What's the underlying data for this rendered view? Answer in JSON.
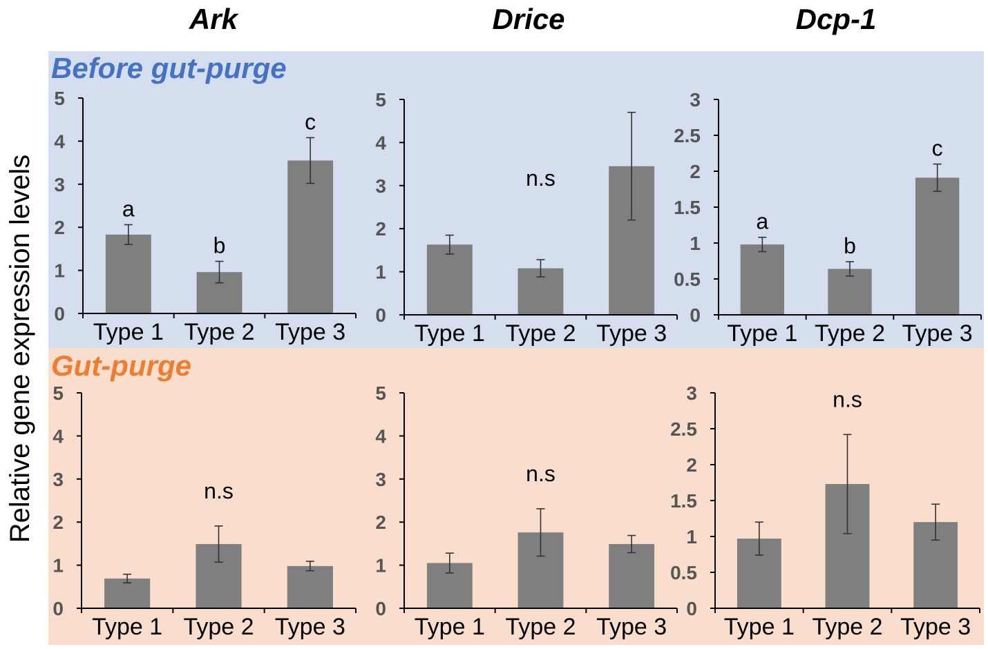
{
  "figure": {
    "y_axis_label": "Relative gene expression levels",
    "gene_titles": [
      "Ark",
      "Drice",
      "Dcp-1"
    ],
    "conditions": [
      {
        "label": "Before gut-purge",
        "label_color": "#4472c4",
        "background": "#d5deef"
      },
      {
        "label": "Gut-purge",
        "label_color": "#ed7d31",
        "background": "#f9ddcd"
      }
    ],
    "bar_color": "#7f7f7f"
  },
  "chart_data": [
    {
      "type": "bar",
      "title": "Ark",
      "condition": "Before gut-purge",
      "categories": [
        "Type 1",
        "Type 2",
        "Type 3"
      ],
      "values": [
        1.83,
        0.96,
        3.55
      ],
      "error": [
        0.23,
        0.25,
        0.53
      ],
      "labels": [
        "a",
        "b",
        "c"
      ],
      "annotation": "",
      "ylim": [
        0,
        5
      ],
      "yticks": [
        0,
        1,
        2,
        3,
        4,
        5
      ],
      "ytick_labels": [
        "0",
        "1",
        "2",
        "3",
        "4",
        "5"
      ]
    },
    {
      "type": "bar",
      "title": "Drice",
      "condition": "Before gut-purge",
      "categories": [
        "Type 1",
        "Type 2",
        "Type 3"
      ],
      "values": [
        1.63,
        1.08,
        3.45
      ],
      "error": [
        0.22,
        0.2,
        1.25
      ],
      "labels": [
        "",
        "",
        ""
      ],
      "annotation": "n.s",
      "ylim": [
        0,
        5
      ],
      "yticks": [
        0,
        1,
        2,
        3,
        4,
        5
      ],
      "ytick_labels": [
        "0",
        "1",
        "2",
        "3",
        "4",
        "5"
      ]
    },
    {
      "type": "bar",
      "title": "Dcp-1",
      "condition": "Before gut-purge",
      "categories": [
        "Type 1",
        "Type 2",
        "Type 3"
      ],
      "values": [
        0.98,
        0.64,
        1.91
      ],
      "error": [
        0.1,
        0.1,
        0.19
      ],
      "labels": [
        "a",
        "b",
        "c"
      ],
      "annotation": "",
      "ylim": [
        0,
        3
      ],
      "yticks": [
        0,
        0.5,
        1,
        1.5,
        2,
        2.5,
        3
      ],
      "ytick_labels": [
        "0",
        "0.5",
        "1",
        "1.5",
        "2",
        "2.5",
        "3"
      ]
    },
    {
      "type": "bar",
      "title": "Ark",
      "condition": "Gut-purge",
      "categories": [
        "Type 1",
        "Type 2",
        "Type 3"
      ],
      "values": [
        0.69,
        1.49,
        0.98
      ],
      "error": [
        0.1,
        0.42,
        0.11
      ],
      "labels": [
        "",
        "",
        ""
      ],
      "annotation": "n.s",
      "ylim": [
        0,
        5
      ],
      "yticks": [
        0,
        1,
        2,
        3,
        4,
        5
      ],
      "ytick_labels": [
        "0",
        "1",
        "2",
        "3",
        "4",
        "5"
      ]
    },
    {
      "type": "bar",
      "title": "Drice",
      "condition": "Gut-purge",
      "categories": [
        "Type 1",
        "Type 2",
        "Type 3"
      ],
      "values": [
        1.05,
        1.76,
        1.49
      ],
      "error": [
        0.23,
        0.55,
        0.2
      ],
      "labels": [
        "",
        "",
        ""
      ],
      "annotation": "n.s",
      "ylim": [
        0,
        5
      ],
      "yticks": [
        0,
        1,
        2,
        3,
        4,
        5
      ],
      "ytick_labels": [
        "0",
        "1",
        "2",
        "3",
        "4",
        "5"
      ]
    },
    {
      "type": "bar",
      "title": "Dcp-1",
      "condition": "Gut-purge",
      "categories": [
        "Type 1",
        "Type 2",
        "Type 3"
      ],
      "values": [
        0.97,
        1.73,
        1.2
      ],
      "error": [
        0.23,
        0.69,
        0.25
      ],
      "labels": [
        "",
        "",
        ""
      ],
      "annotation": "n.s",
      "ylim": [
        0,
        3
      ],
      "yticks": [
        0,
        0.5,
        1,
        1.5,
        2,
        2.5,
        3
      ],
      "ytick_labels": [
        "0",
        "0.5",
        "1",
        "1.5",
        "2",
        "2.5",
        "3"
      ]
    }
  ]
}
